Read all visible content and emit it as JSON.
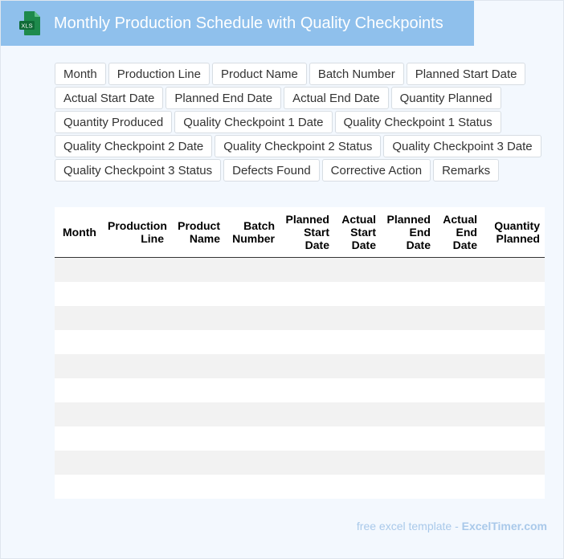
{
  "header": {
    "title": "Monthly Production Schedule with Quality Checkpoints",
    "icon": "excel-file-icon",
    "icon_text": "XLS",
    "accent_color": "#8fc0ec"
  },
  "fields": [
    "Month",
    "Production Line",
    "Product Name",
    "Batch Number",
    "Planned Start Date",
    "Actual Start Date",
    "Planned End Date",
    "Actual End Date",
    "Quantity Planned",
    "Quantity Produced",
    "Quality Checkpoint 1 Date",
    "Quality Checkpoint 1 Status",
    "Quality Checkpoint 2 Date",
    "Quality Checkpoint 2 Status",
    "Quality Checkpoint 3 Date",
    "Quality Checkpoint 3 Status",
    "Defects Found",
    "Corrective Action",
    "Remarks"
  ],
  "table": {
    "columns": [
      [
        "Month"
      ],
      [
        "Production",
        "Line"
      ],
      [
        "Product",
        "Name"
      ],
      [
        "Batch",
        "Number"
      ],
      [
        "Planned",
        "Start",
        "Date"
      ],
      [
        "Actual",
        "Start",
        "Date"
      ],
      [
        "Planned",
        "End",
        "Date"
      ],
      [
        "Actual",
        "End",
        "Date"
      ],
      [
        "Quantity",
        "Planned"
      ]
    ],
    "row_count": 10
  },
  "footer": {
    "prefix": "free excel template - ",
    "brand": "ExcelTimer.com"
  }
}
